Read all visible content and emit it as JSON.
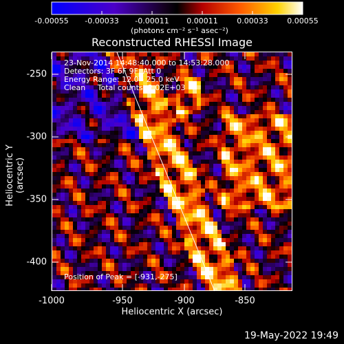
{
  "colorbar": {
    "tick_labels": [
      "-0.00055",
      "-0.00033",
      "-0.00011",
      "0.00011",
      "0.00033",
      "0.00055"
    ],
    "units": "(photons cm⁻² s⁻¹ asec⁻²)"
  },
  "title": "Reconstructed RHESSI Image",
  "annotations": [
    "23-Nov-2014 14:48:40.000 to 14:53:28.000",
    "Detectors: 3F 6F 9F, Att 0",
    "Energy Range: 12.0 - 25.0 keV",
    "Clean     Total counts: 2.02E+03"
  ],
  "peak": "Position of Peak = [-931,-275]",
  "xlabel": "Heliocentric X (arcsec)",
  "ylabel": "Heliocentric Y (arcsec)",
  "xticks": [
    "-1000",
    "-950",
    "-900",
    "-850"
  ],
  "yticks": [
    "-250",
    "-300",
    "-350",
    "-400"
  ],
  "footer": "19-May-2022 19:49"
}
